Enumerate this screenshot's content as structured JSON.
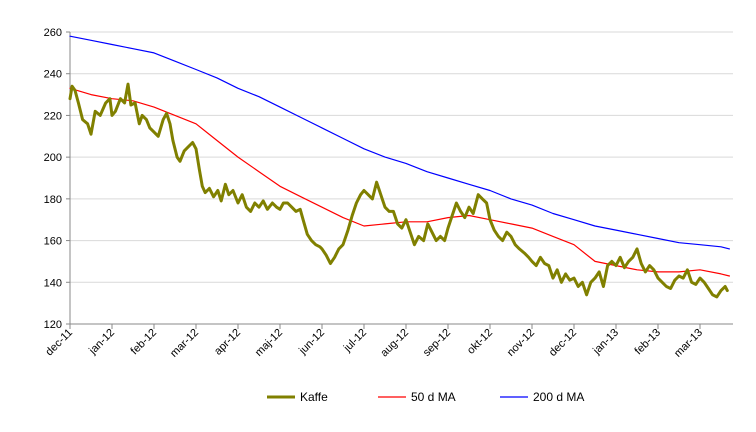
{
  "chart_data": {
    "type": "line",
    "ylim": [
      120,
      260
    ],
    "yticks": [
      120,
      140,
      160,
      180,
      200,
      220,
      240,
      260
    ],
    "grid": "horizontal",
    "legend_position": "bottom",
    "x_ticks": [
      "dec-11",
      "jan-12",
      "feb-12",
      "mar-12",
      "apr-12",
      "maj-12",
      "jun-12",
      "jul-12",
      "aug-12",
      "sep-12",
      "okt-12",
      "nov-12",
      "dec-12",
      "jan-13",
      "feb-13",
      "mar-13"
    ],
    "series": [
      {
        "name": "Kaffe",
        "color": "#808000",
        "points": [
          [
            "dec-11",
            228
          ],
          [
            0.05,
            234
          ],
          [
            0.12,
            232
          ],
          [
            0.2,
            226
          ],
          [
            0.3,
            218
          ],
          [
            0.42,
            216
          ],
          [
            0.5,
            211
          ],
          [
            0.6,
            222
          ],
          [
            0.72,
            220
          ],
          [
            0.85,
            226
          ],
          [
            0.95,
            228
          ],
          [
            "jan-12",
            220
          ],
          [
            1.08,
            222
          ],
          [
            1.2,
            228
          ],
          [
            1.3,
            226
          ],
          [
            1.38,
            235
          ],
          [
            1.45,
            225
          ],
          [
            1.55,
            226
          ],
          [
            1.65,
            216
          ],
          [
            1.72,
            220
          ],
          [
            1.82,
            218
          ],
          [
            1.9,
            214
          ],
          [
            "feb-12",
            212
          ],
          [
            2.1,
            210
          ],
          [
            2.22,
            218
          ],
          [
            2.3,
            221
          ],
          [
            2.38,
            216
          ],
          [
            2.45,
            208
          ],
          [
            2.55,
            200
          ],
          [
            2.62,
            198
          ],
          [
            2.72,
            203
          ],
          [
            2.82,
            205
          ],
          [
            2.92,
            207
          ],
          [
            "mar-12",
            204
          ],
          [
            3.08,
            194
          ],
          [
            3.15,
            186
          ],
          [
            3.22,
            183
          ],
          [
            3.32,
            185
          ],
          [
            3.42,
            181
          ],
          [
            3.52,
            184
          ],
          [
            3.6,
            179
          ],
          [
            3.7,
            187
          ],
          [
            3.78,
            182
          ],
          [
            3.88,
            184
          ],
          [
            "apr-12",
            178
          ],
          [
            4.1,
            182
          ],
          [
            4.2,
            176
          ],
          [
            4.3,
            174
          ],
          [
            4.4,
            178
          ],
          [
            4.5,
            176
          ],
          [
            4.6,
            179
          ],
          [
            4.7,
            175
          ],
          [
            4.82,
            178
          ],
          [
            4.92,
            176
          ],
          [
            "maj-12",
            175
          ],
          [
            5.08,
            178
          ],
          [
            5.18,
            178
          ],
          [
            5.28,
            176
          ],
          [
            5.38,
            174
          ],
          [
            5.48,
            175
          ],
          [
            5.55,
            170
          ],
          [
            5.65,
            163
          ],
          [
            5.75,
            160
          ],
          [
            5.85,
            158
          ],
          [
            5.95,
            157
          ],
          [
            "jun-12",
            156
          ],
          [
            6.1,
            153
          ],
          [
            6.2,
            149
          ],
          [
            6.3,
            152
          ],
          [
            6.4,
            156
          ],
          [
            6.5,
            158
          ],
          [
            6.62,
            165
          ],
          [
            6.72,
            172
          ],
          [
            6.82,
            178
          ],
          [
            6.92,
            182
          ],
          [
            "jul-12",
            184
          ],
          [
            7.1,
            182
          ],
          [
            7.2,
            180
          ],
          [
            7.3,
            188
          ],
          [
            7.4,
            182
          ],
          [
            7.5,
            176
          ],
          [
            7.6,
            174
          ],
          [
            7.7,
            174
          ],
          [
            7.8,
            168
          ],
          [
            7.9,
            166
          ],
          [
            "aug-12",
            170
          ],
          [
            8.1,
            164
          ],
          [
            8.2,
            158
          ],
          [
            8.3,
            162
          ],
          [
            8.42,
            160
          ],
          [
            8.52,
            168
          ],
          [
            8.62,
            164
          ],
          [
            8.72,
            160
          ],
          [
            8.82,
            162
          ],
          [
            8.92,
            160
          ],
          [
            "sep-12",
            166
          ],
          [
            9.1,
            172
          ],
          [
            9.2,
            178
          ],
          [
            9.3,
            174
          ],
          [
            9.4,
            171
          ],
          [
            9.5,
            176
          ],
          [
            9.6,
            173
          ],
          [
            9.72,
            182
          ],
          [
            9.82,
            180
          ],
          [
            9.92,
            178
          ],
          [
            "okt-12",
            170
          ],
          [
            10.1,
            165
          ],
          [
            10.2,
            162
          ],
          [
            10.3,
            160
          ],
          [
            10.4,
            164
          ],
          [
            10.5,
            162
          ],
          [
            10.6,
            158
          ],
          [
            10.7,
            156
          ],
          [
            10.82,
            154
          ],
          [
            10.92,
            152
          ],
          [
            "nov-12",
            150
          ],
          [
            11.1,
            148
          ],
          [
            11.2,
            152
          ],
          [
            11.3,
            149
          ],
          [
            11.4,
            148
          ],
          [
            11.5,
            142
          ],
          [
            11.6,
            146
          ],
          [
            11.7,
            140
          ],
          [
            11.8,
            144
          ],
          [
            11.9,
            141
          ],
          [
            "dec-12",
            142
          ],
          [
            12.1,
            138
          ],
          [
            12.2,
            140
          ],
          [
            12.3,
            134
          ],
          [
            12.4,
            140
          ],
          [
            12.5,
            142
          ],
          [
            12.6,
            145
          ],
          [
            12.7,
            138
          ],
          [
            12.8,
            148
          ],
          [
            12.9,
            150
          ],
          [
            "jan-13",
            148
          ],
          [
            13.1,
            152
          ],
          [
            13.2,
            147
          ],
          [
            13.3,
            150
          ],
          [
            13.4,
            152
          ],
          [
            13.5,
            156
          ],
          [
            13.6,
            149
          ],
          [
            13.7,
            145
          ],
          [
            13.8,
            148
          ],
          [
            13.9,
            146
          ],
          [
            "feb-13",
            142
          ],
          [
            14.1,
            140
          ],
          [
            14.2,
            138
          ],
          [
            14.3,
            137
          ],
          [
            14.4,
            141
          ],
          [
            14.5,
            143
          ],
          [
            14.6,
            142
          ],
          [
            14.7,
            146
          ],
          [
            14.8,
            140
          ],
          [
            14.9,
            139
          ],
          [
            "mar-13",
            142
          ],
          [
            15.1,
            140
          ],
          [
            15.2,
            137
          ],
          [
            15.3,
            134
          ],
          [
            15.4,
            133
          ],
          [
            15.5,
            136
          ],
          [
            15.6,
            138
          ],
          [
            15.65,
            136
          ]
        ]
      },
      {
        "name": "50 d MA",
        "color": "#ff0000",
        "points": [
          [
            "dec-11",
            233
          ],
          [
            0.5,
            230
          ],
          [
            "jan-12",
            228
          ],
          [
            1.5,
            227
          ],
          [
            "feb-12",
            224
          ],
          [
            2.5,
            220
          ],
          [
            "mar-12",
            216
          ],
          [
            3.5,
            208
          ],
          [
            "apr-12",
            200
          ],
          [
            4.5,
            193
          ],
          [
            "maj-12",
            186
          ],
          [
            5.5,
            181
          ],
          [
            "jun-12",
            176
          ],
          [
            6.5,
            171
          ],
          [
            "jul-12",
            167
          ],
          [
            7.5,
            168
          ],
          [
            "aug-12",
            169
          ],
          [
            8.5,
            169
          ],
          [
            "sep-12",
            171
          ],
          [
            9.5,
            172
          ],
          [
            "okt-12",
            170
          ],
          [
            10.5,
            168
          ],
          [
            "nov-12",
            166
          ],
          [
            11.5,
            162
          ],
          [
            "dec-12",
            158
          ],
          [
            12.5,
            150
          ],
          [
            "jan-13",
            148
          ],
          [
            13.5,
            146
          ],
          [
            "feb-13",
            145
          ],
          [
            14.5,
            145
          ],
          [
            "mar-13",
            146
          ],
          [
            15.5,
            144
          ],
          [
            15.7,
            143
          ]
        ]
      },
      {
        "name": "200 d MA",
        "color": "#0000ff",
        "points": [
          [
            "dec-11",
            258
          ],
          [
            0.5,
            256
          ],
          [
            "jan-12",
            254
          ],
          [
            1.5,
            252
          ],
          [
            "feb-12",
            250
          ],
          [
            2.5,
            246
          ],
          [
            "mar-12",
            242
          ],
          [
            3.5,
            238
          ],
          [
            "apr-12",
            233
          ],
          [
            4.5,
            229
          ],
          [
            "maj-12",
            224
          ],
          [
            5.5,
            219
          ],
          [
            "jun-12",
            214
          ],
          [
            6.5,
            209
          ],
          [
            "jul-12",
            204
          ],
          [
            7.5,
            200
          ],
          [
            "aug-12",
            197
          ],
          [
            8.5,
            193
          ],
          [
            "sep-12",
            190
          ],
          [
            9.5,
            187
          ],
          [
            "okt-12",
            184
          ],
          [
            10.5,
            180
          ],
          [
            "nov-12",
            177
          ],
          [
            11.5,
            173
          ],
          [
            "dec-12",
            170
          ],
          [
            12.5,
            167
          ],
          [
            "jan-13",
            165
          ],
          [
            13.5,
            163
          ],
          [
            "feb-13",
            161
          ],
          [
            14.5,
            159
          ],
          [
            "mar-13",
            158
          ],
          [
            15.5,
            157
          ],
          [
            15.7,
            156
          ]
        ]
      }
    ]
  }
}
